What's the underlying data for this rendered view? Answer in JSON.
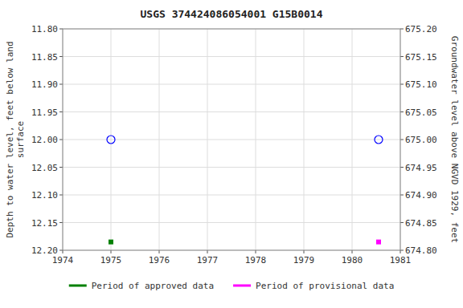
{
  "chart_data": {
    "type": "scatter",
    "title": "USGS 374424086054001 G15B0014",
    "ylabel": "Depth to water level, feet below land\nsurface",
    "y2label": "Groundwater level above NGVD 1929, feet",
    "xlim": [
      1974,
      1981
    ],
    "xticks": [
      1974,
      1975,
      1976,
      1977,
      1978,
      1979,
      1980,
      1981
    ],
    "ylim": [
      12.2,
      11.8
    ],
    "yticks": [
      {
        "value": 11.8,
        "label": "11.80"
      },
      11.85,
      {
        "value": 11.9,
        "label": "11.90"
      },
      11.95,
      {
        "value": 12,
        "label": "12.00"
      },
      12.05,
      {
        "value": 12.1,
        "label": "12.10"
      },
      12.15,
      {
        "value": 12.2,
        "label": "12.20"
      }
    ],
    "y2lim": [
      674.8,
      675.2
    ],
    "y2ticks": [
      {
        "value": 675.2,
        "label": "675.20"
      },
      675.15,
      {
        "value": 675.1,
        "label": "675.10"
      },
      675.05,
      {
        "value": 675,
        "label": "675.00"
      },
      674.95,
      {
        "value": 674.9,
        "label": "674.90"
      },
      674.85,
      {
        "value": 674.8,
        "label": "674.80"
      }
    ],
    "grid": true,
    "legend": "bottom",
    "series": [
      {
        "name": "Period of approved data",
        "color": "#008000",
        "marker": "square",
        "x": [
          1975.0
        ],
        "values": [
          12.185
        ]
      },
      {
        "name": "Period of provisional data",
        "color": "#ff00ff",
        "marker": "square",
        "x": [
          1980.55
        ],
        "values": [
          12.185
        ]
      },
      {
        "color": "#0000ff",
        "marker": "open-circle",
        "x": [
          1975.0,
          1980.55
        ],
        "values": [
          12.0,
          12.0
        ]
      }
    ]
  }
}
